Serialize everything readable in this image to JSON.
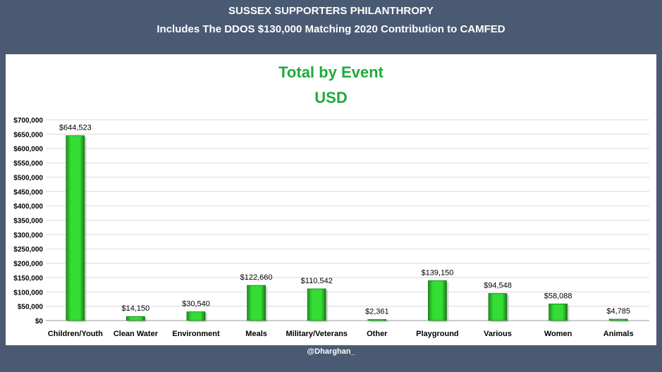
{
  "header": {
    "line1": "SUSSEX SUPPORTERS PHILANTHROPY",
    "line2": "Includes The DDOS $130,000 Matching 2020 Contribution to CAMFED"
  },
  "footer": {
    "credit": "@Dharghan_"
  },
  "colors": {
    "background": "#4a5a72",
    "bar": "#33dd33",
    "title": "#1faa3c"
  },
  "chart_data": {
    "type": "bar",
    "title": "Total by Event",
    "subtitle": "USD",
    "categories": [
      "Children/Youth",
      "Clean Water",
      "Environment",
      "Meals",
      "Military/Veterans",
      "Other",
      "Playground",
      "Various",
      "Women",
      "Animals"
    ],
    "values": [
      644523,
      14150,
      30540,
      122660,
      110542,
      2361,
      139150,
      94548,
      58088,
      4785
    ],
    "data_labels": [
      "$644,523",
      "$14,150",
      "$30,540",
      "$122,660",
      "$110,542",
      "$2,361",
      "$139,150",
      "$94,548",
      "$58,088",
      "$4,785"
    ],
    "ylim": [
      0,
      700000
    ],
    "ytick_labels": [
      "$0",
      "$50,000",
      "$100,000",
      "$150,000",
      "$200,000",
      "$250,000",
      "$300,000",
      "$350,000",
      "$400,000",
      "$450,000",
      "$500,000",
      "$550,000",
      "$600,000",
      "$650,000",
      "$700,000"
    ],
    "grid": true,
    "legend": "none"
  }
}
